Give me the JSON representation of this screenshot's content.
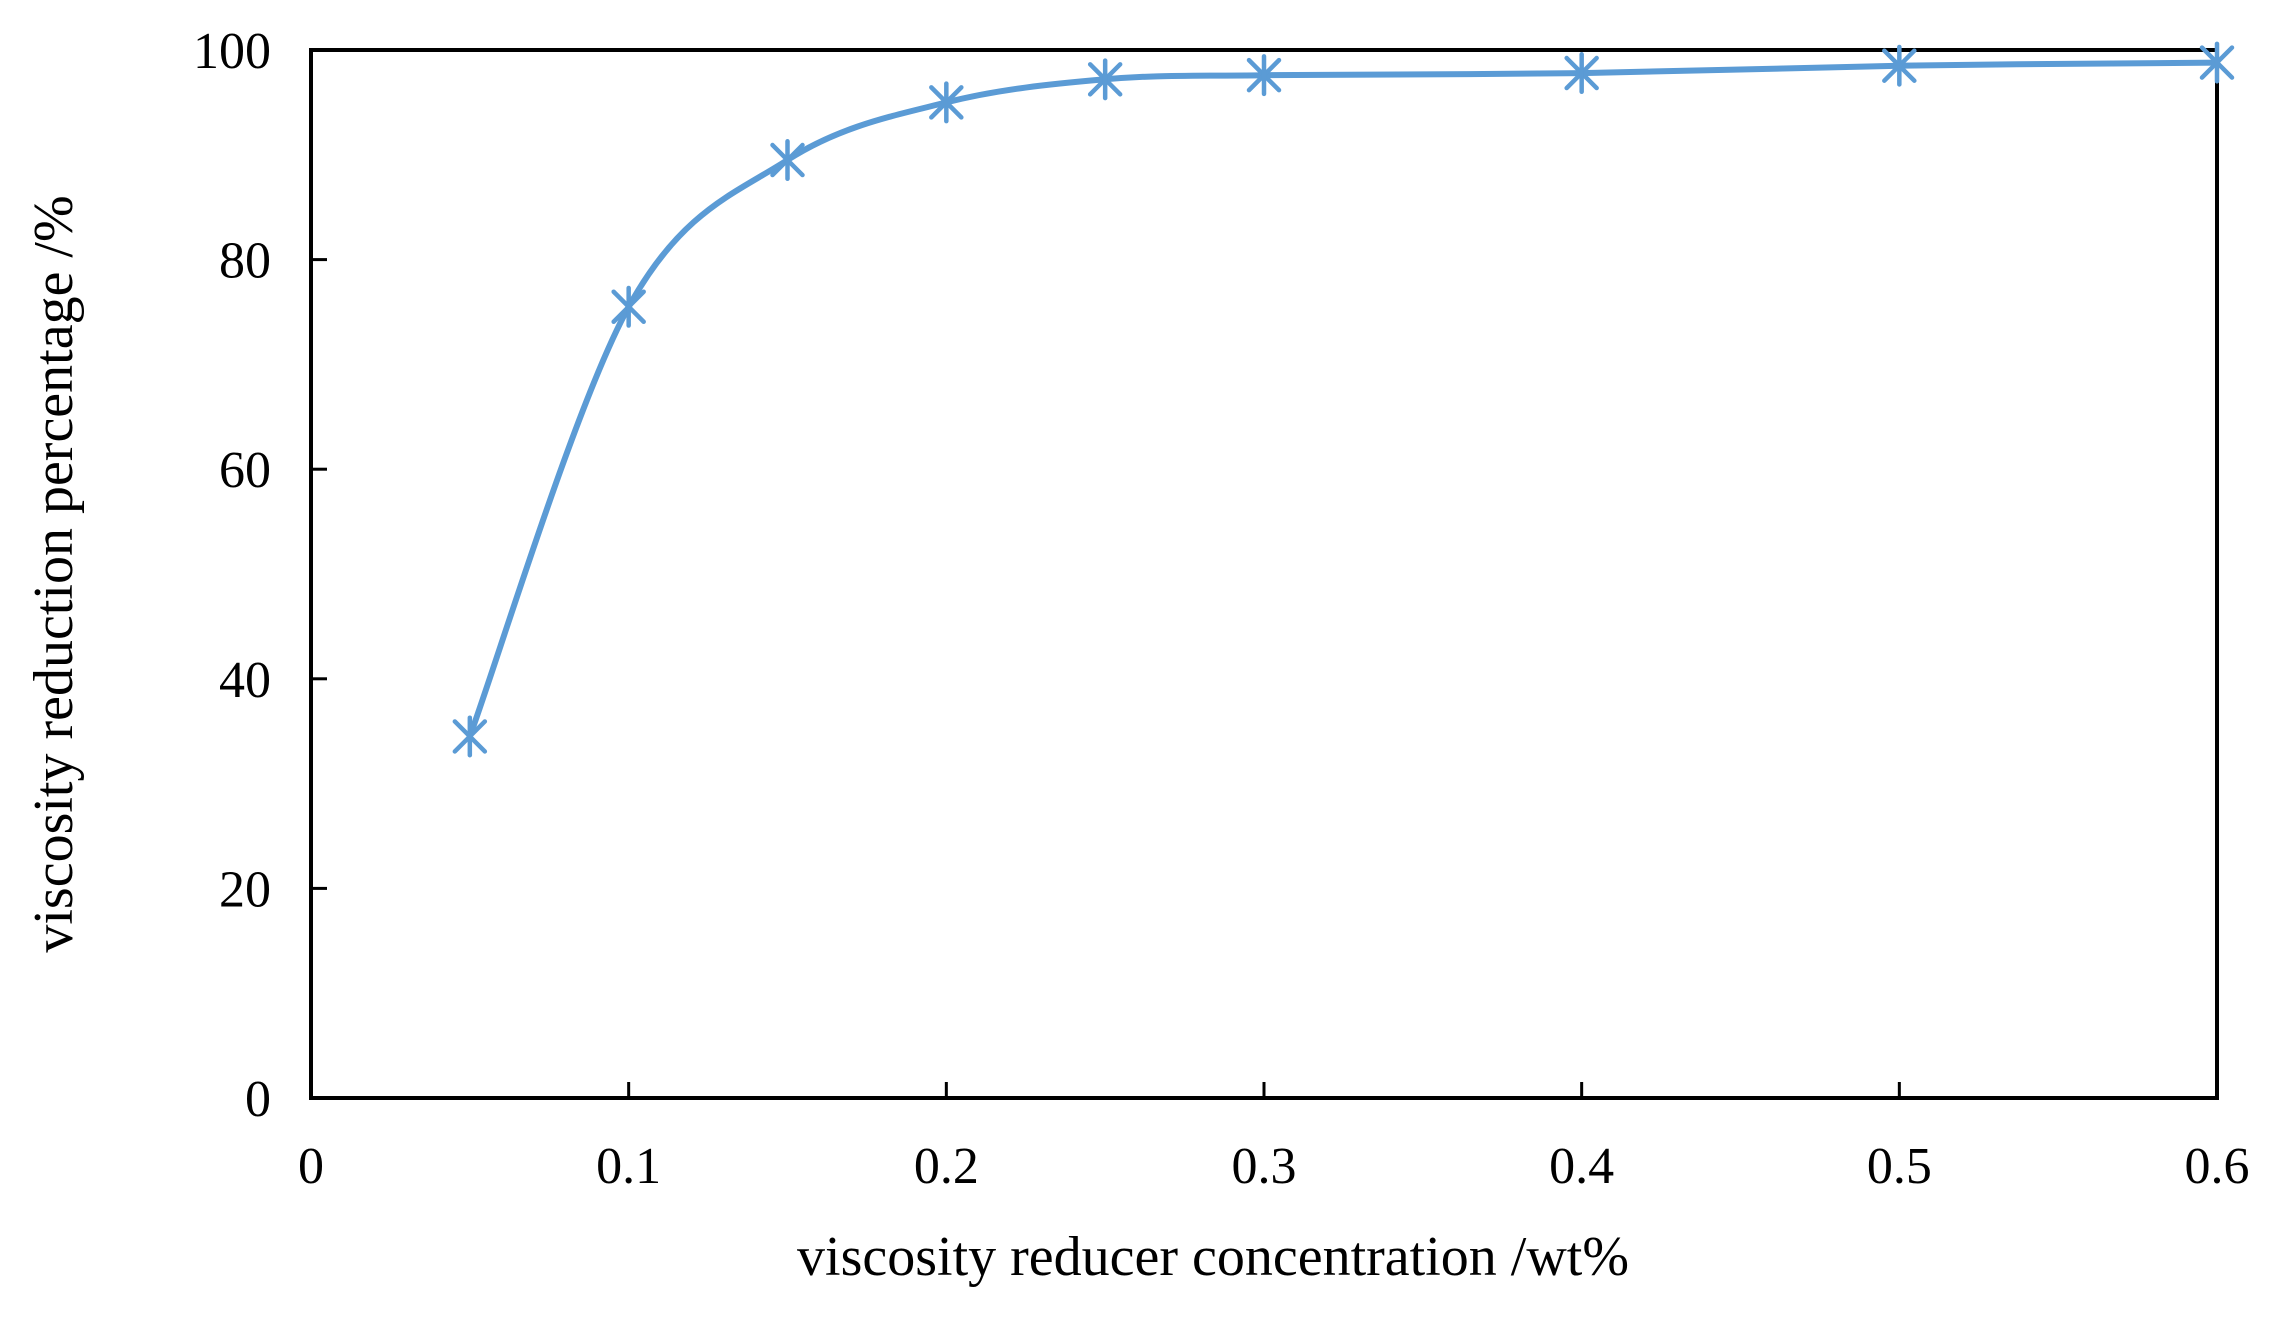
{
  "chart_data": {
    "type": "line",
    "xlabel": "viscosity reducer concentration /wt%",
    "ylabel": "viscosity reduction percentage  /%",
    "xlim": [
      0,
      0.6
    ],
    "ylim": [
      0,
      100
    ],
    "x_ticks": [
      "0",
      "0.1",
      "0.2",
      "0.3",
      "0.4",
      "0.5",
      "0.6"
    ],
    "y_ticks": [
      "0",
      "20",
      "40",
      "60",
      "80",
      "100"
    ],
    "grid": false,
    "legend": "none",
    "series": [
      {
        "color": "#5b9bd5",
        "marker": "asterisk",
        "smooth": true,
        "x": [
          0.05,
          0.1,
          0.15,
          0.2,
          0.25,
          0.3,
          0.4,
          0.5,
          0.6
        ],
        "y": [
          34.5,
          75.5,
          89.5,
          95.0,
          97.2,
          97.6,
          97.8,
          98.5,
          98.8
        ]
      }
    ]
  }
}
